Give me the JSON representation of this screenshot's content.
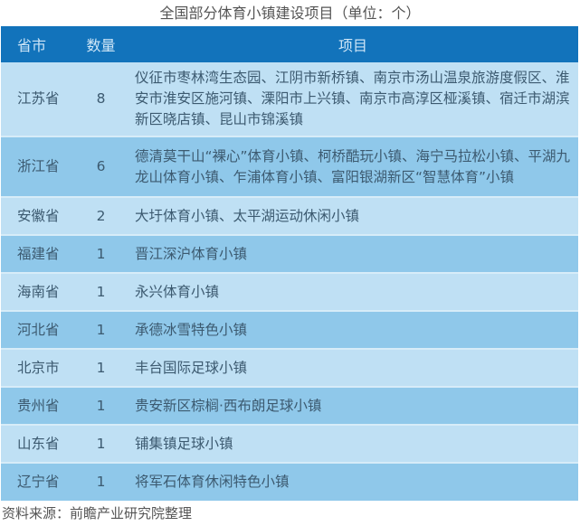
{
  "chart_data": {
    "type": "table",
    "title": "全国部分体育小镇建设项目（单位：个）",
    "columns": [
      "省市",
      "数量",
      "项目"
    ],
    "rows": [
      {
        "province": "江苏省",
        "count": "8",
        "projects": "仪征市枣林湾生态园、江阴市新桥镇、南京市汤山温泉旅游度假区、淮安市淮安区施河镇、溧阳市上兴镇、南京市高淳区桠溪镇、宿迁市湖滨新区晓店镇、昆山市锦溪镇"
      },
      {
        "province": "浙江省",
        "count": "6",
        "projects": "德清莫干山“裸心”体育小镇、柯桥酷玩小镇、海宁马拉松小镇、平湖九龙山体育小镇、乍浦体育小镇、富阳银湖新区“智慧体育”小镇"
      },
      {
        "province": "安徽省",
        "count": "2",
        "projects": "大圩体育小镇、太平湖运动休闲小镇"
      },
      {
        "province": "福建省",
        "count": "1",
        "projects": "晋江深沪体育小镇"
      },
      {
        "province": "海南省",
        "count": "1",
        "projects": "永兴体育小镇"
      },
      {
        "province": "河北省",
        "count": "1",
        "projects": "承德冰雪特色小镇"
      },
      {
        "province": "北京市",
        "count": "1",
        "projects": "丰台国际足球小镇"
      },
      {
        "province": "贵州省",
        "count": "1",
        "projects": "贵安新区棕榈·西布朗足球小镇"
      },
      {
        "province": "山东省",
        "count": "1",
        "projects": "铺集镇足球小镇"
      },
      {
        "province": "辽宁省",
        "count": "1",
        "projects": "将军石体育休闲特色小镇"
      }
    ],
    "source": "资料来源：前瞻产业研究院整理",
    "colors": {
      "header": "#1273bb",
      "row_light": "#bfe0f4",
      "row_dark": "#8fc8ea"
    }
  }
}
